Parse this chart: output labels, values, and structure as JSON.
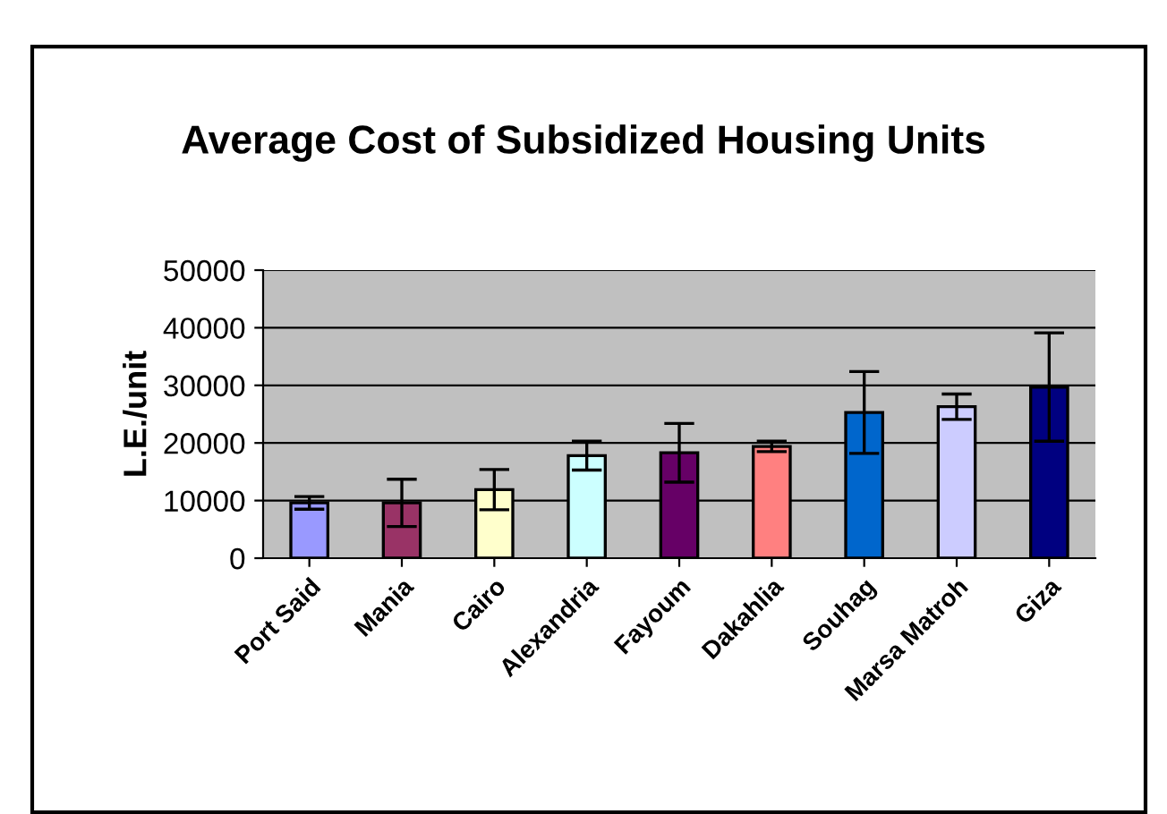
{
  "chart_data": {
    "type": "bar",
    "title": "Average Cost of Subsidized Housing Units",
    "ylabel": "L.E./unit",
    "categories": [
      "Port Said",
      "Mania",
      "Cairo",
      "Alexandria",
      "Fayoum",
      "Dakahlia",
      "Souhag",
      "Marsa Matroh",
      "Giza"
    ],
    "values": [
      9600,
      9600,
      11900,
      17800,
      18300,
      19400,
      25300,
      26300,
      29700
    ],
    "errors": [
      1100,
      4100,
      3500,
      2500,
      5100,
      900,
      7100,
      2200,
      9400
    ],
    "colors": [
      "#9999ff",
      "#993366",
      "#ffffcc",
      "#ccffff",
      "#660066",
      "#ff8080",
      "#0066cc",
      "#ccccff",
      "#000080"
    ],
    "ylim": [
      0,
      50000
    ],
    "yticks": [
      0,
      10000,
      20000,
      30000,
      40000,
      50000
    ],
    "grid": "y",
    "legend": false
  }
}
